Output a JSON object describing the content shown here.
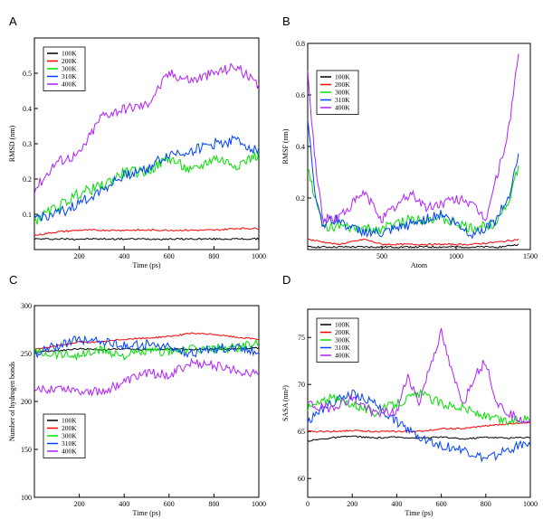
{
  "chart_data": [
    {
      "panel": "A",
      "type": "line",
      "xlabel": "Time (ps)",
      "ylabel": "RMSD (nm)",
      "xlim": [
        0,
        1000
      ],
      "ylim": [
        0,
        0.6
      ],
      "xticks": [
        200,
        400,
        600,
        800,
        1000
      ],
      "yticks": [
        0.1,
        0.2,
        0.3,
        0.4,
        0.5
      ],
      "legend": "top-left",
      "series": [
        {
          "name": "100K",
          "color": "#000000",
          "x": [
            0,
            100,
            200,
            300,
            400,
            500,
            600,
            700,
            800,
            900,
            1000
          ],
          "y": [
            0.03,
            0.03,
            0.03,
            0.03,
            0.03,
            0.03,
            0.03,
            0.03,
            0.03,
            0.03,
            0.03
          ]
        },
        {
          "name": "200K",
          "color": "#ff0000",
          "x": [
            0,
            100,
            200,
            300,
            400,
            500,
            600,
            700,
            800,
            900,
            1000
          ],
          "y": [
            0.04,
            0.05,
            0.055,
            0.055,
            0.055,
            0.055,
            0.055,
            0.055,
            0.055,
            0.06,
            0.06
          ]
        },
        {
          "name": "300K",
          "color": "#00e000",
          "x": [
            0,
            100,
            200,
            300,
            400,
            500,
            600,
            700,
            800,
            900,
            1000
          ],
          "y": [
            0.08,
            0.12,
            0.16,
            0.18,
            0.22,
            0.22,
            0.26,
            0.22,
            0.26,
            0.24,
            0.27
          ]
        },
        {
          "name": "310K",
          "color": "#0040ff",
          "x": [
            0,
            100,
            200,
            300,
            400,
            500,
            600,
            700,
            800,
            900,
            1000
          ],
          "y": [
            0.09,
            0.1,
            0.13,
            0.17,
            0.21,
            0.23,
            0.27,
            0.28,
            0.3,
            0.31,
            0.28
          ]
        },
        {
          "name": "400K",
          "color": "#b020ff",
          "x": [
            0,
            100,
            200,
            300,
            400,
            500,
            600,
            700,
            800,
            900,
            1000
          ],
          "y": [
            0.17,
            0.25,
            0.27,
            0.38,
            0.4,
            0.41,
            0.5,
            0.48,
            0.5,
            0.52,
            0.46
          ]
        }
      ]
    },
    {
      "panel": "B",
      "type": "line",
      "xlabel": "Atom",
      "ylabel": "RMSF (nm)",
      "xlim": [
        0,
        1500
      ],
      "ylim": [
        0,
        0.8
      ],
      "xticks": [
        500,
        1000,
        1500
      ],
      "yticks": [
        0.2,
        0.4,
        0.6,
        0.8
      ],
      "legend": "top-left",
      "series": [
        {
          "name": "100K",
          "color": "#000000",
          "x": [
            0,
            100,
            200,
            400,
            600,
            800,
            1000,
            1100,
            1200,
            1300,
            1420
          ],
          "y": [
            0.01,
            0.01,
            0.01,
            0.01,
            0.01,
            0.01,
            0.01,
            0.01,
            0.01,
            0.01,
            0.02
          ]
        },
        {
          "name": "200K",
          "color": "#ff0000",
          "x": [
            0,
            100,
            200,
            300,
            380,
            500,
            700,
            900,
            1100,
            1300,
            1420
          ],
          "y": [
            0.04,
            0.03,
            0.02,
            0.03,
            0.04,
            0.02,
            0.02,
            0.02,
            0.02,
            0.03,
            0.04
          ]
        },
        {
          "name": "300K",
          "color": "#00e000",
          "x": [
            0,
            50,
            100,
            200,
            300,
            500,
            700,
            900,
            1100,
            1250,
            1350,
            1420
          ],
          "y": [
            0.32,
            0.2,
            0.09,
            0.09,
            0.08,
            0.08,
            0.12,
            0.12,
            0.08,
            0.1,
            0.18,
            0.32
          ]
        },
        {
          "name": "310K",
          "color": "#0040ff",
          "x": [
            0,
            50,
            100,
            200,
            300,
            500,
            700,
            900,
            1100,
            1250,
            1350,
            1420
          ],
          "y": [
            0.5,
            0.22,
            0.1,
            0.12,
            0.08,
            0.06,
            0.1,
            0.14,
            0.06,
            0.1,
            0.2,
            0.37
          ]
        },
        {
          "name": "400K",
          "color": "#b020ff",
          "x": [
            0,
            50,
            100,
            200,
            380,
            500,
            700,
            800,
            900,
            1050,
            1200,
            1350,
            1420
          ],
          "y": [
            0.68,
            0.35,
            0.12,
            0.12,
            0.22,
            0.12,
            0.22,
            0.16,
            0.18,
            0.2,
            0.12,
            0.45,
            0.76
          ]
        }
      ]
    },
    {
      "panel": "C",
      "type": "line",
      "xlabel": "Time (ps)",
      "ylabel": "Number of hydrogen bonds",
      "xlim": [
        0,
        1000
      ],
      "ylim": [
        100,
        300
      ],
      "xticks": [
        200,
        400,
        600,
        800,
        1000
      ],
      "yticks": [
        100,
        150,
        200,
        250,
        300
      ],
      "legend": "bottom-left",
      "series": [
        {
          "name": "100K",
          "color": "#000000",
          "x": [
            0,
            100,
            200,
            300,
            400,
            500,
            600,
            700,
            800,
            900,
            1000
          ],
          "y": [
            252,
            253,
            255,
            254,
            255,
            254,
            255,
            254,
            255,
            255,
            256
          ]
        },
        {
          "name": "200K",
          "color": "#ff0000",
          "x": [
            0,
            100,
            200,
            300,
            400,
            500,
            600,
            700,
            800,
            900,
            1000
          ],
          "y": [
            254,
            258,
            262,
            262,
            265,
            266,
            268,
            271,
            270,
            267,
            265
          ]
        },
        {
          "name": "300K",
          "color": "#00e000",
          "x": [
            0,
            100,
            200,
            300,
            400,
            500,
            600,
            700,
            800,
            900,
            1000
          ],
          "y": [
            252,
            250,
            248,
            254,
            248,
            252,
            252,
            254,
            255,
            256,
            262
          ]
        },
        {
          "name": "310K",
          "color": "#0040ff",
          "x": [
            0,
            100,
            200,
            300,
            400,
            500,
            600,
            700,
            800,
            900,
            1000
          ],
          "y": [
            250,
            258,
            265,
            263,
            258,
            260,
            256,
            250,
            255,
            257,
            252
          ]
        },
        {
          "name": "400K",
          "color": "#b020ff",
          "x": [
            0,
            100,
            200,
            300,
            400,
            500,
            600,
            700,
            800,
            900,
            1000
          ],
          "y": [
            210,
            215,
            212,
            210,
            220,
            230,
            228,
            240,
            238,
            232,
            230
          ]
        }
      ]
    },
    {
      "panel": "D",
      "type": "line",
      "xlabel": "Time (ps)",
      "ylabel": "SASA (nm²)",
      "xlim": [
        0,
        1000
      ],
      "ylim": [
        58,
        78
      ],
      "xticks": [
        0,
        200,
        400,
        600,
        800,
        1000
      ],
      "yticks": [
        60,
        65,
        70,
        75
      ],
      "legend": "top-left",
      "series": [
        {
          "name": "100K",
          "color": "#000000",
          "x": [
            0,
            100,
            200,
            300,
            400,
            500,
            600,
            700,
            800,
            900,
            1000
          ],
          "y": [
            64,
            64.3,
            64.5,
            64.3,
            64.4,
            64.3,
            64.4,
            64.2,
            64.4,
            64.3,
            64.4
          ]
        },
        {
          "name": "200K",
          "color": "#ff0000",
          "x": [
            0,
            100,
            200,
            300,
            400,
            500,
            600,
            700,
            800,
            900,
            1000
          ],
          "y": [
            65,
            65,
            65.1,
            65,
            65,
            65,
            65.3,
            65.3,
            65.6,
            65.8,
            66
          ]
        },
        {
          "name": "300K",
          "color": "#00e000",
          "x": [
            0,
            100,
            200,
            300,
            400,
            500,
            600,
            700,
            800,
            900,
            1000
          ],
          "y": [
            67.5,
            68.5,
            68,
            67,
            68,
            69,
            68,
            67.5,
            66.5,
            66,
            66.5
          ]
        },
        {
          "name": "310K",
          "color": "#0040ff",
          "x": [
            0,
            100,
            200,
            300,
            400,
            500,
            600,
            700,
            800,
            900,
            1000
          ],
          "y": [
            66,
            68,
            69,
            68,
            66,
            64.5,
            63.5,
            63,
            62,
            63,
            64
          ]
        },
        {
          "name": "400K",
          "color": "#b020ff",
          "x": [
            0,
            50,
            100,
            200,
            300,
            400,
            450,
            500,
            550,
            600,
            650,
            700,
            750,
            800,
            850,
            900,
            950,
            1000
          ],
          "y": [
            68,
            67.5,
            67.5,
            68.5,
            67,
            67,
            71,
            68,
            72,
            75.5,
            71,
            68,
            71,
            72.5,
            68,
            67,
            66.5,
            66
          ]
        }
      ]
    }
  ]
}
